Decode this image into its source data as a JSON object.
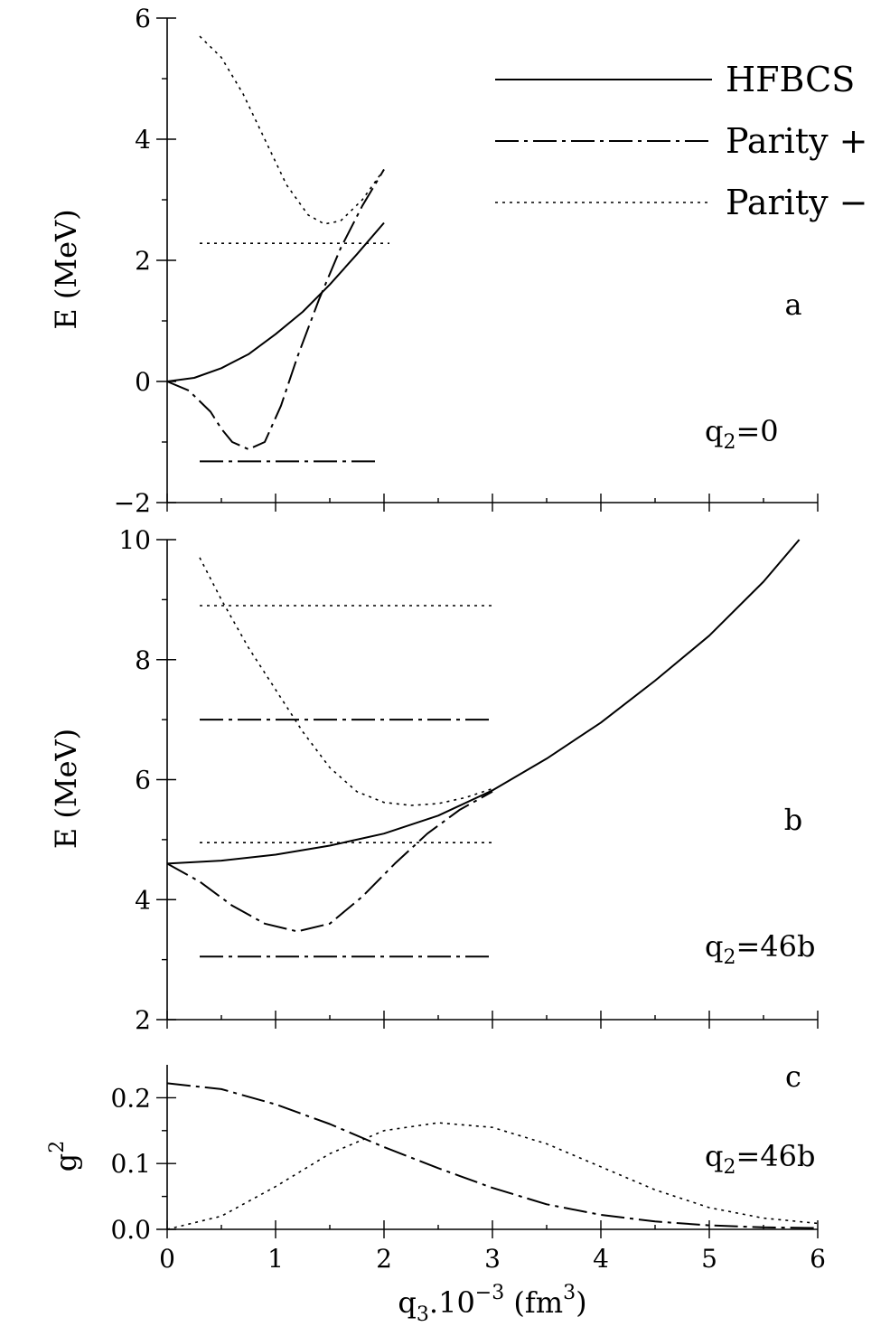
{
  "chart_data": [
    {
      "type": "line",
      "panel_label": "a",
      "annotation": "q",
      "annotation_sub": "2",
      "annotation_rest": "=0",
      "ylabel": "E (MeV)",
      "xlabel": "",
      "xlim": [
        0,
        6
      ],
      "ylim": [
        -2,
        6
      ],
      "yticks": [
        -2,
        0,
        2,
        4,
        6
      ],
      "ytick_labels": [
        "−2",
        "0",
        "2",
        "4",
        "6"
      ],
      "xticks": [
        0,
        1,
        2,
        3,
        4,
        5,
        6
      ],
      "legend": {
        "position": "top-right",
        "entries": [
          {
            "label": "HFBCS",
            "style": "solid"
          },
          {
            "label": "Parity +",
            "style": "dashdot"
          },
          {
            "label": "Parity −",
            "style": "dotted"
          }
        ]
      },
      "series": [
        {
          "style": "solid",
          "x": [
            0,
            0.25,
            0.5,
            0.75,
            1.0,
            1.25,
            1.5,
            1.75,
            2.0
          ],
          "y": [
            0,
            0.06,
            0.22,
            0.45,
            0.78,
            1.15,
            1.6,
            2.1,
            2.62
          ]
        },
        {
          "style": "dashdot",
          "x": [
            0,
            0.2,
            0.4,
            0.5,
            0.6,
            0.75,
            0.9,
            1.05,
            1.2,
            1.4,
            1.6,
            1.8,
            2.0
          ],
          "y": [
            0,
            -0.15,
            -0.5,
            -0.78,
            -1.0,
            -1.12,
            -1.0,
            -0.4,
            0.4,
            1.35,
            2.2,
            2.9,
            3.5
          ]
        },
        {
          "style": "dotted",
          "x": [
            0.3,
            0.5,
            0.7,
            0.9,
            1.1,
            1.3,
            1.45,
            1.6,
            1.8,
            2.0
          ],
          "y": [
            5.7,
            5.35,
            4.75,
            4.0,
            3.25,
            2.75,
            2.6,
            2.65,
            3.0,
            3.5
          ]
        },
        {
          "style": "dotted",
          "x": [
            0.3,
            2.05
          ],
          "y": [
            2.28,
            2.28
          ]
        },
        {
          "style": "dashdot",
          "x": [
            0.3,
            1.95
          ],
          "y": [
            -1.32,
            -1.32
          ]
        }
      ]
    },
    {
      "type": "line",
      "panel_label": "b",
      "annotation": "q",
      "annotation_sub": "2",
      "annotation_rest": "=46b",
      "ylabel": "E (MeV)",
      "xlabel": "",
      "xlim": [
        0,
        6
      ],
      "ylim": [
        2,
        10
      ],
      "yticks": [
        2,
        4,
        6,
        8,
        10
      ],
      "ytick_labels": [
        "2",
        "4",
        "6",
        "8",
        "10"
      ],
      "xticks": [
        0,
        1,
        2,
        3,
        4,
        5,
        6
      ],
      "series": [
        {
          "style": "solid",
          "x": [
            0,
            0.5,
            1.0,
            1.5,
            2.0,
            2.5,
            3.0,
            3.5,
            4.0,
            4.5,
            5.0,
            5.5,
            5.83
          ],
          "y": [
            4.6,
            4.65,
            4.75,
            4.9,
            5.1,
            5.4,
            5.82,
            6.35,
            6.95,
            7.65,
            8.4,
            9.3,
            10.0
          ]
        },
        {
          "style": "dashdot",
          "x": [
            0,
            0.3,
            0.6,
            0.9,
            1.2,
            1.5,
            1.8,
            2.1,
            2.4,
            2.7,
            3.0
          ],
          "y": [
            4.6,
            4.3,
            3.9,
            3.6,
            3.47,
            3.6,
            4.05,
            4.6,
            5.1,
            5.5,
            5.8
          ]
        },
        {
          "style": "dotted",
          "x": [
            0.3,
            0.5,
            0.75,
            1.0,
            1.25,
            1.5,
            1.75,
            2.0,
            2.25,
            2.5,
            2.75,
            3.0
          ],
          "y": [
            9.7,
            9.0,
            8.2,
            7.5,
            6.8,
            6.2,
            5.8,
            5.62,
            5.57,
            5.6,
            5.7,
            5.85
          ]
        },
        {
          "style": "dotted",
          "x": [
            0.3,
            3.0
          ],
          "y": [
            8.9,
            8.9
          ]
        },
        {
          "style": "dotted",
          "x": [
            0.3,
            3.0
          ],
          "y": [
            4.95,
            4.95
          ]
        },
        {
          "style": "dashdot",
          "x": [
            0.3,
            3.0
          ],
          "y": [
            7.0,
            7.0
          ]
        },
        {
          "style": "dashdot",
          "x": [
            0.3,
            3.0
          ],
          "y": [
            3.05,
            3.05
          ]
        }
      ]
    },
    {
      "type": "line",
      "panel_label": "c",
      "annotation": "q",
      "annotation_sub": "2",
      "annotation_rest": "=46b",
      "ylabel": "g",
      "ylabel_sup": "2",
      "xlabel": "q",
      "xlabel_sub": "3",
      "xlabel_mid": ".10",
      "xlabel_sup": "−3",
      "xlabel_rest": " (fm",
      "xlabel_sup2": "3",
      "xlabel_end": ")",
      "xlim": [
        0,
        6
      ],
      "ylim": [
        0,
        0.25
      ],
      "yticks": [
        0.0,
        0.1,
        0.2
      ],
      "ytick_labels": [
        "0.0",
        "0.1",
        "0.2"
      ],
      "xticks": [
        0,
        1,
        2,
        3,
        4,
        5,
        6
      ],
      "xtick_labels": [
        "0",
        "1",
        "2",
        "3",
        "4",
        "5",
        "6"
      ],
      "series": [
        {
          "style": "dashdot",
          "x": [
            0,
            0.5,
            1.0,
            1.5,
            2.0,
            2.5,
            3.0,
            3.5,
            4.0,
            4.5,
            5.0,
            5.5,
            6.0
          ],
          "y": [
            0.222,
            0.213,
            0.19,
            0.16,
            0.125,
            0.093,
            0.063,
            0.038,
            0.022,
            0.012,
            0.006,
            0.003,
            0.002
          ]
        },
        {
          "style": "dotted",
          "x": [
            0,
            0.5,
            1.0,
            1.5,
            2.0,
            2.5,
            3.0,
            3.5,
            4.0,
            4.5,
            5.0,
            5.5,
            6.0
          ],
          "y": [
            0.0,
            0.02,
            0.065,
            0.115,
            0.15,
            0.162,
            0.155,
            0.13,
            0.095,
            0.06,
            0.033,
            0.017,
            0.009
          ]
        }
      ]
    }
  ]
}
